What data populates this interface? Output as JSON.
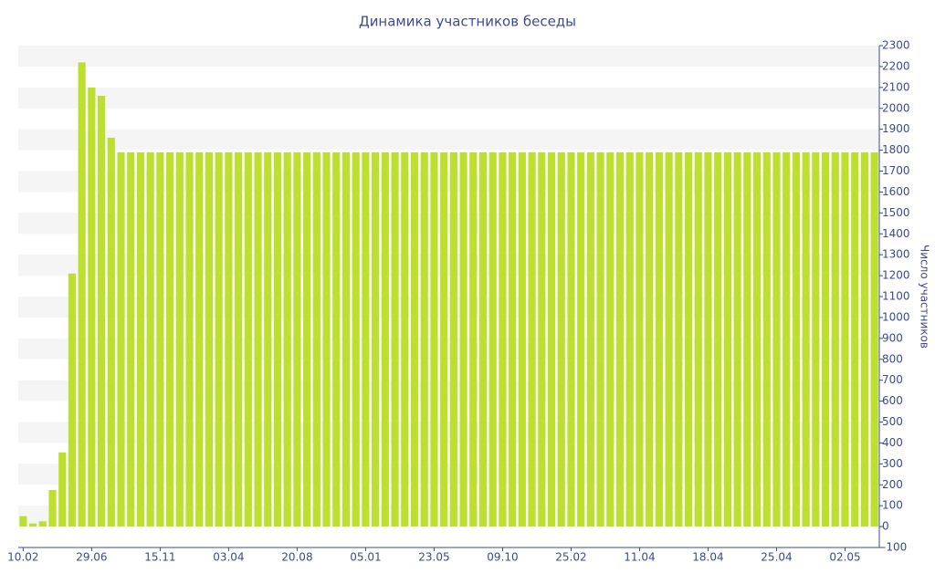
{
  "chart_data": {
    "type": "bar",
    "title": "Динамика участников беседы",
    "y_label": "Число участников",
    "categories": [
      "10.02",
      null,
      null,
      null,
      null,
      null,
      null,
      "29.06",
      null,
      null,
      null,
      null,
      null,
      null,
      "15.11",
      null,
      null,
      null,
      null,
      null,
      null,
      "03.04",
      null,
      null,
      null,
      null,
      null,
      null,
      "20.08",
      null,
      null,
      null,
      null,
      null,
      null,
      "05.01",
      null,
      null,
      null,
      null,
      null,
      null,
      "23.05",
      null,
      null,
      null,
      null,
      null,
      null,
      "09.10",
      null,
      null,
      null,
      null,
      null,
      null,
      "25.02",
      null,
      null,
      null,
      null,
      null,
      null,
      "11.04",
      null,
      null,
      null,
      null,
      null,
      null,
      "18.04",
      null,
      null,
      null,
      null,
      null,
      null,
      "25.04",
      null,
      null,
      null,
      null,
      null,
      null,
      "02.05",
      null,
      null,
      null
    ],
    "values": [
      50,
      15,
      25,
      175,
      355,
      1210,
      2220,
      2100,
      2060,
      1860,
      1790,
      1790,
      1790,
      1790,
      1790,
      1790,
      1790,
      1790,
      1790,
      1790,
      1790,
      1790,
      1790,
      1790,
      1790,
      1790,
      1790,
      1790,
      1790,
      1790,
      1790,
      1790,
      1790,
      1790,
      1790,
      1790,
      1790,
      1790,
      1790,
      1790,
      1790,
      1790,
      1790,
      1790,
      1790,
      1790,
      1790,
      1790,
      1790,
      1790,
      1790,
      1790,
      1790,
      1790,
      1790,
      1790,
      1790,
      1790,
      1790,
      1790,
      1790,
      1790,
      1790,
      1790,
      1790,
      1790,
      1790,
      1790,
      1790,
      1790,
      1790,
      1790,
      1790,
      1790,
      1790,
      1790,
      1790,
      1790,
      1790,
      1790,
      1790,
      1790,
      1790,
      1790,
      1790,
      1790,
      1790,
      1790
    ],
    "color": "#bde02e",
    "ylim": [
      -100,
      2300
    ],
    "yticks": [
      -100,
      0,
      100,
      200,
      300,
      400,
      500,
      600,
      700,
      800,
      900,
      1000,
      1100,
      1200,
      1300,
      1400,
      1500,
      1600,
      1700,
      1800,
      1900,
      2000,
      2100,
      2200,
      2300
    ],
    "y_axis_side": "right",
    "grid": true
  }
}
